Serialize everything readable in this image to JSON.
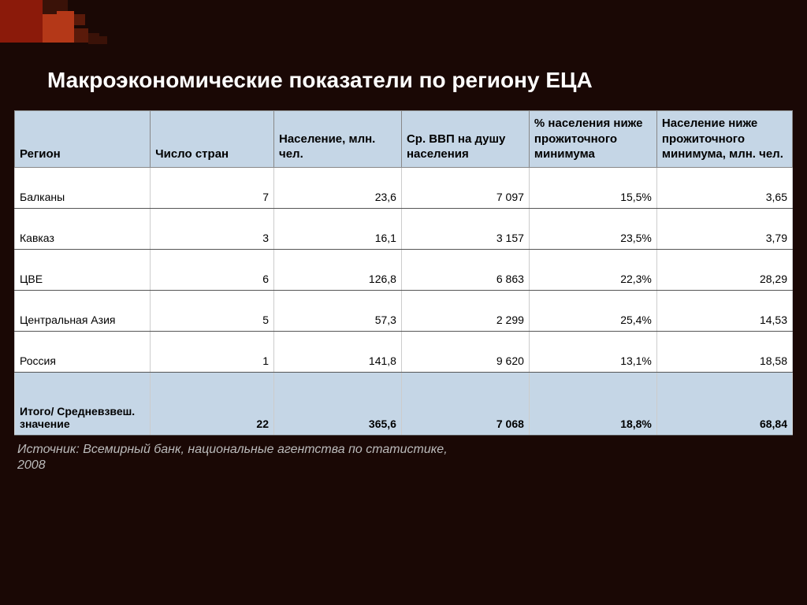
{
  "title": "Макроэкономические показатели по региону ЕЦА",
  "table": {
    "columns": [
      "Регион",
      "Число стран",
      "Население, млн. чел.",
      "Ср. ВВП на душу населения",
      "% населения ниже прожиточного минимума",
      "Население ниже прожиточного минимума, млн. чел."
    ],
    "rows": [
      {
        "region": "Балканы",
        "count": "7",
        "pop": "23,6",
        "gdp": "7 097",
        "pct": "15,5%",
        "below": "3,65"
      },
      {
        "region": "Кавказ",
        "count": "3",
        "pop": "16,1",
        "gdp": "3 157",
        "pct": "23,5%",
        "below": "3,79"
      },
      {
        "region": "ЦВЕ",
        "count": "6",
        "pop": "126,8",
        "gdp": "6 863",
        "pct": "22,3%",
        "below": "28,29"
      },
      {
        "region": "Центральная Азия",
        "count": "5",
        "pop": "57,3",
        "gdp": "2 299",
        "pct": "25,4%",
        "below": "14,53"
      },
      {
        "region": "Россия",
        "count": "1",
        "pop": "141,8",
        "gdp": "9 620",
        "pct": "13,1%",
        "below": "18,58"
      }
    ],
    "total": {
      "label": "Итого/ Средневзвеш. значение",
      "count": "22",
      "pop": "365,6",
      "gdp": "7 068",
      "pct": "18,8%",
      "below": "68,84"
    }
  },
  "source": "Источник: Всемирный банк, национальные агентства по статистике, 2008",
  "colors": {
    "background": "#1a0805",
    "header_bg": "#c5d6e6",
    "text_title": "#ffffff",
    "table_bg": "#ffffff",
    "source_text": "#bbbbbb"
  }
}
